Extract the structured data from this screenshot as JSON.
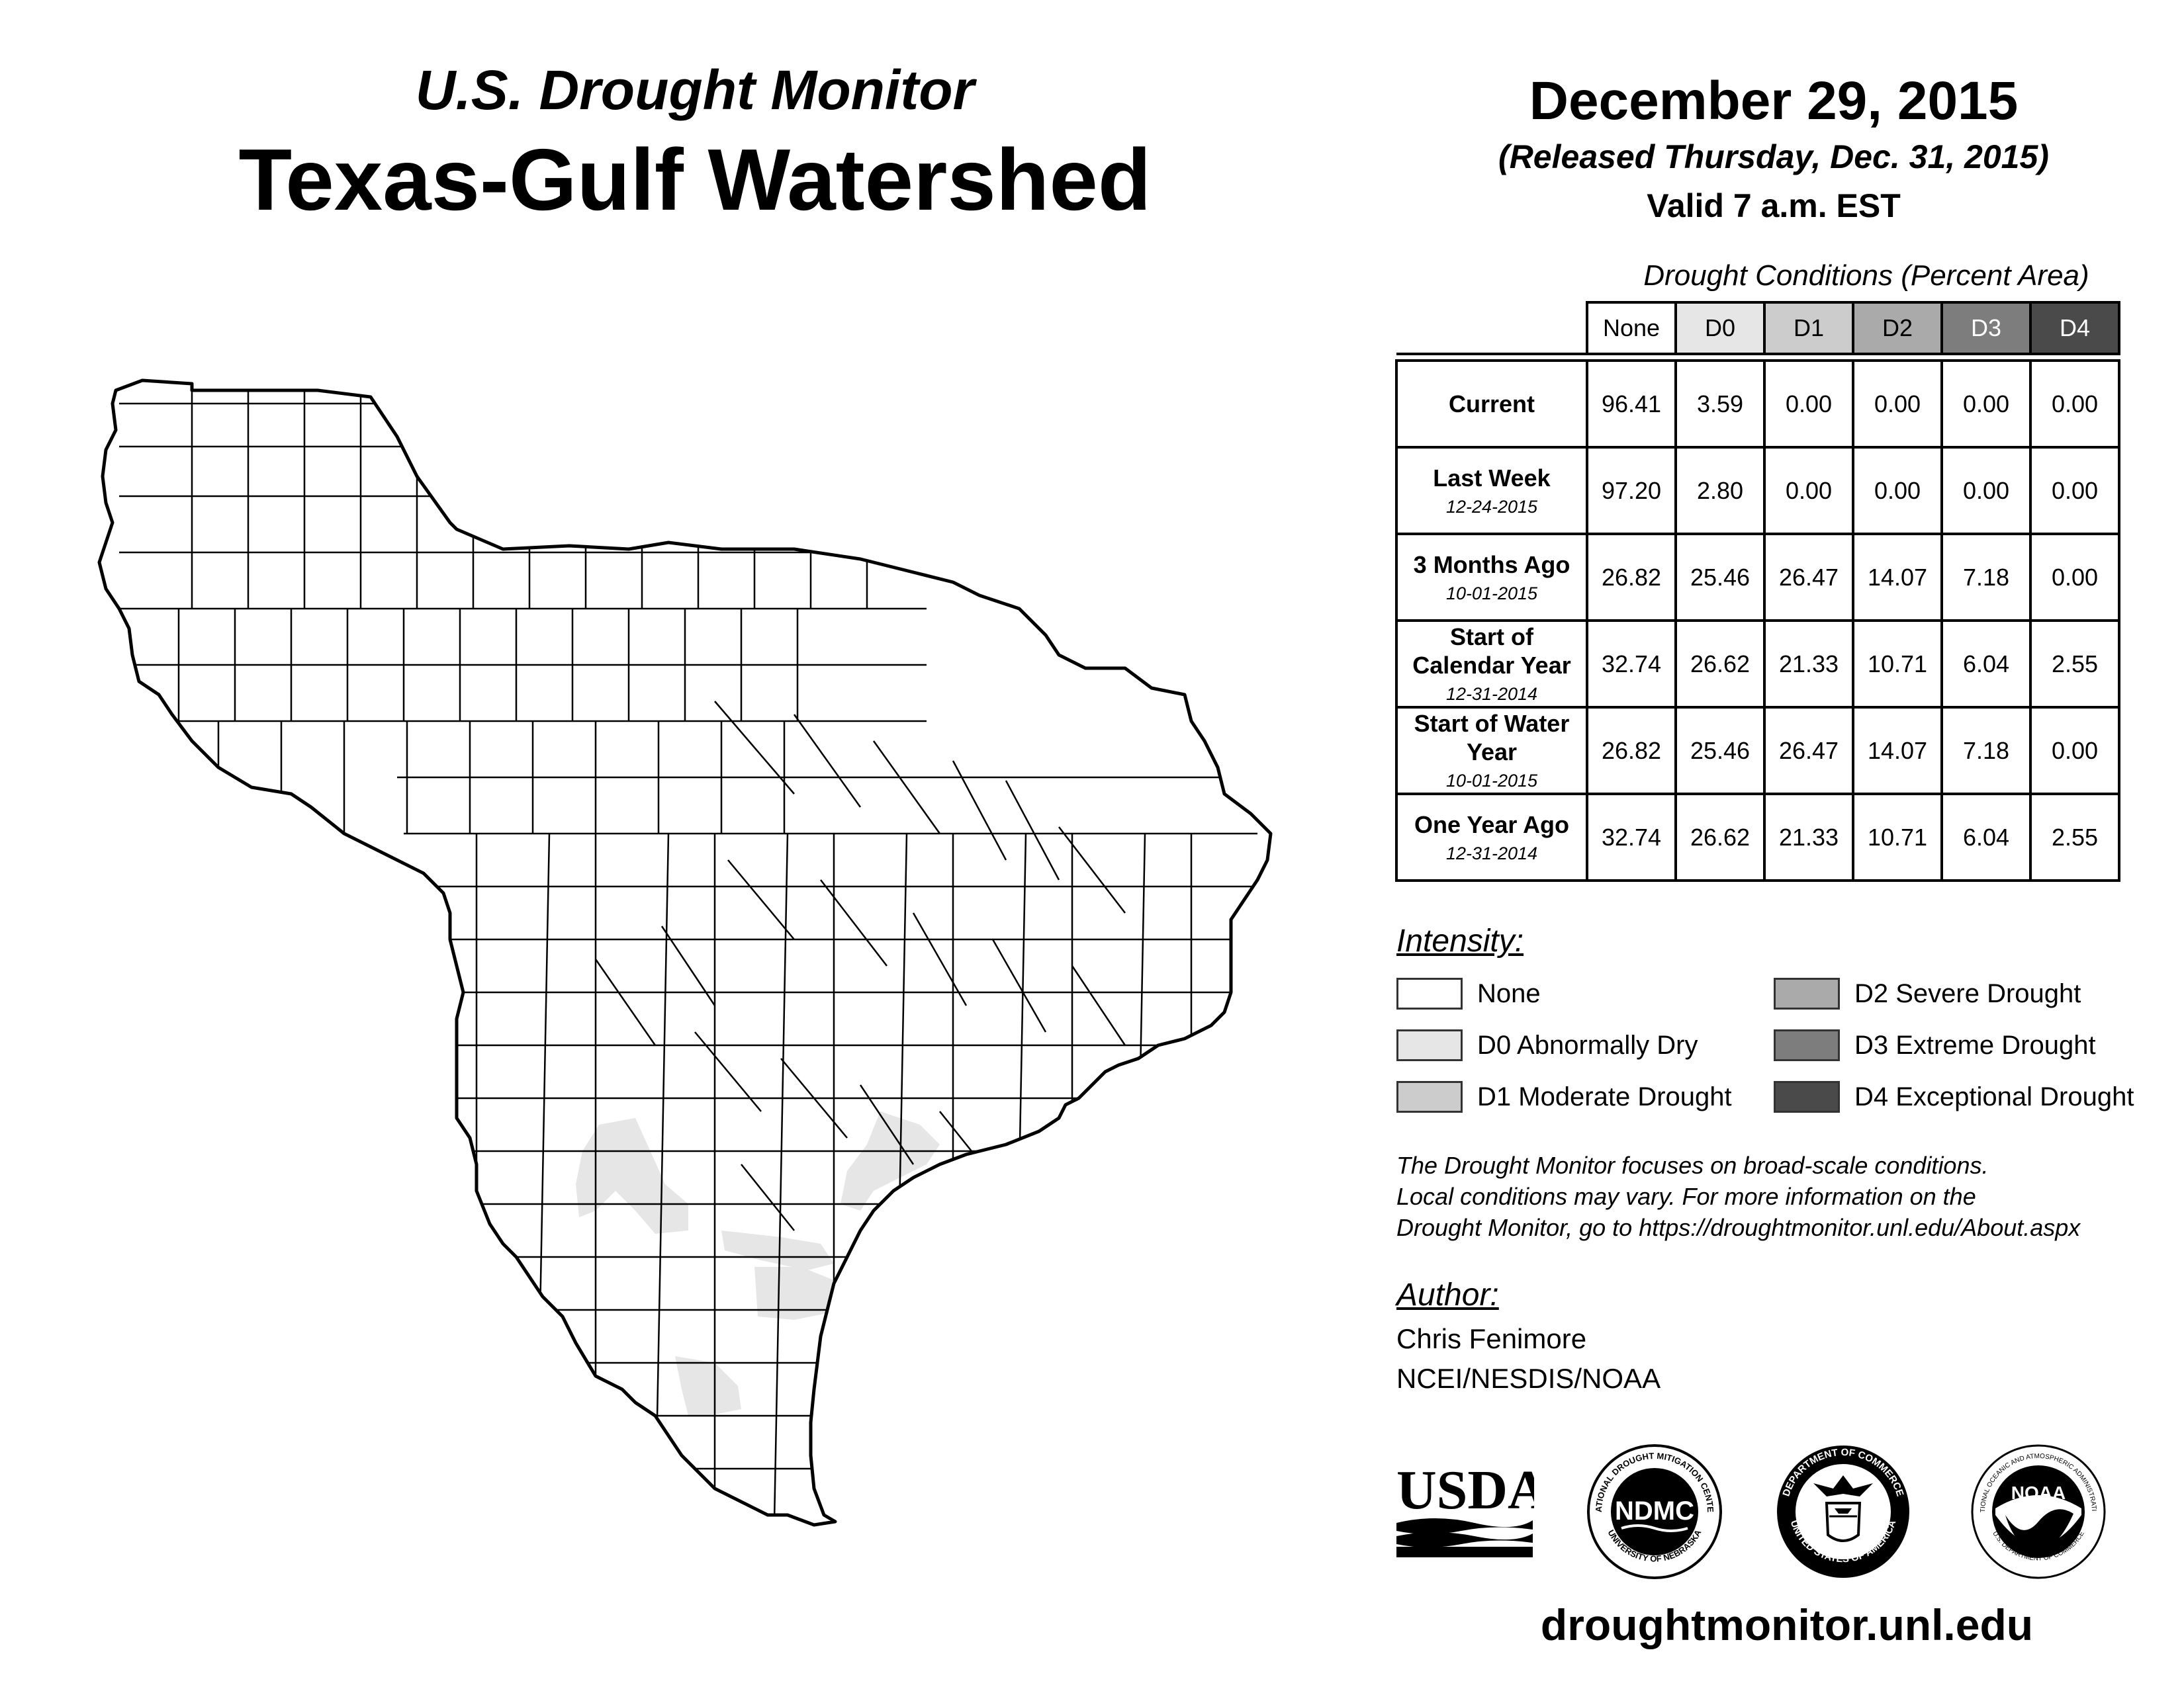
{
  "header": {
    "subtitle": "U.S. Drought Monitor",
    "title": "Texas-Gulf Watershed",
    "date": "December 29, 2015",
    "released": "(Released Thursday, Dec. 31, 2015)",
    "valid": "Valid 7 a.m. EST"
  },
  "table": {
    "caption": "Drought Conditions (Percent Area)",
    "columns": [
      "None",
      "D0",
      "D1",
      "D2",
      "D3",
      "D4"
    ],
    "column_colors": [
      "#ffffff",
      "#e6e6e6",
      "#cccccc",
      "#aaaaaa",
      "#7d7d7d",
      "#4a4a4a"
    ],
    "column_text_colors": [
      "#000000",
      "#000000",
      "#000000",
      "#000000",
      "#ffffff",
      "#ffffff"
    ],
    "rows": [
      {
        "label": "Current",
        "date": "",
        "values": [
          "96.41",
          "3.59",
          "0.00",
          "0.00",
          "0.00",
          "0.00"
        ]
      },
      {
        "label": "Last Week",
        "date": "12-24-2015",
        "values": [
          "97.20",
          "2.80",
          "0.00",
          "0.00",
          "0.00",
          "0.00"
        ]
      },
      {
        "label": "3 Months Ago",
        "date": "10-01-2015",
        "values": [
          "26.82",
          "25.46",
          "26.47",
          "14.07",
          "7.18",
          "0.00"
        ]
      },
      {
        "label": "Start of Calendar Year",
        "date": "12-31-2014",
        "values": [
          "32.74",
          "26.62",
          "21.33",
          "10.71",
          "6.04",
          "2.55"
        ]
      },
      {
        "label": "Start of Water Year",
        "date": "10-01-2015",
        "values": [
          "26.82",
          "25.46",
          "26.47",
          "14.07",
          "7.18",
          "0.00"
        ]
      },
      {
        "label": "One Year Ago",
        "date": "12-31-2014",
        "values": [
          "32.74",
          "26.62",
          "21.33",
          "10.71",
          "6.04",
          "2.55"
        ]
      }
    ]
  },
  "legend": {
    "title": "Intensity:",
    "items": [
      {
        "label": "None",
        "color": "#ffffff"
      },
      {
        "label": "D0 Abnormally Dry",
        "color": "#e6e6e6"
      },
      {
        "label": "D1 Moderate Drought",
        "color": "#cccccc"
      },
      {
        "label": "D2 Severe Drought",
        "color": "#aaaaaa"
      },
      {
        "label": "D3 Extreme Drought",
        "color": "#7d7d7d"
      },
      {
        "label": "D4 Exceptional Drought",
        "color": "#4a4a4a"
      }
    ]
  },
  "note": {
    "line1": "The Drought Monitor focuses on broad-scale conditions.",
    "line2": "Local conditions may vary. For more information on the",
    "line3": "Drought Monitor, go to https://droughtmonitor.unl.edu/About.aspx"
  },
  "author": {
    "label": "Author:",
    "name": "Chris Fenimore",
    "org": "NCEI/NESDIS/NOAA"
  },
  "logos": {
    "usda": "USDA",
    "ndmc": "NDMC",
    "ndmc_ring_top": "NATIONAL DROUGHT MITIGATION CENTER",
    "ndmc_ring_bottom": "UNIVERSITY OF NEBRASKA",
    "doc_ring_top": "DEPARTMENT OF COMMERCE",
    "doc_ring_bottom": "UNITED STATES OF AMERICA",
    "noaa": "NOAA",
    "noaa_ring_top": "NATIONAL OCEANIC AND ATMOSPHERIC ADMINISTRATION",
    "noaa_ring_bottom": "U.S. DEPARTMENT OF COMMERCE"
  },
  "website": "droughtmonitor.unl.edu",
  "map": {
    "region": "Texas-Gulf Watershed",
    "d0_color": "#e6e6e6",
    "boundary_color": "#000000"
  }
}
